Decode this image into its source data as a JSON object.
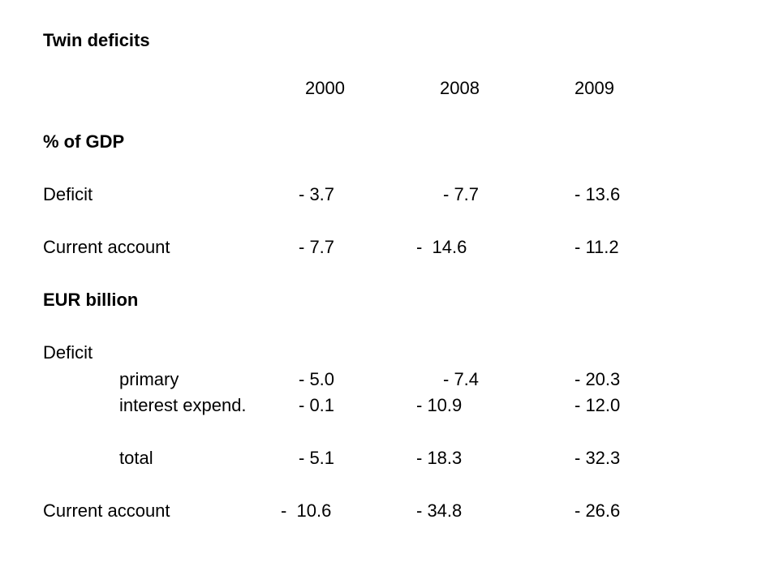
{
  "title": "Twin deficits",
  "years": [
    "2000",
    "2008",
    "2009"
  ],
  "section_pct": {
    "heading": "% of GDP",
    "rows": [
      {
        "label": "Deficit",
        "values": [
          "- 3.7",
          "- 7.7",
          "- 13.6"
        ]
      },
      {
        "label": "Current account",
        "values": [
          "- 7.7",
          "-  14.6",
          "- 11.2"
        ]
      }
    ]
  },
  "section_eur": {
    "heading": "EUR billion",
    "deficit_label": "Deficit",
    "rows": [
      {
        "label": "primary",
        "values": [
          "- 5.0",
          "- 7.4",
          "- 20.3"
        ]
      },
      {
        "label": "interest expend.",
        "values": [
          "- 0.1",
          "- 10.9",
          "- 12.0"
        ]
      },
      {
        "label": "total",
        "values": [
          "- 5.1",
          "- 18.3",
          "- 32.3"
        ]
      }
    ],
    "current_account": {
      "label": "Current account",
      "values": [
        "-  10.6",
        "- 34.8",
        "- 26.6"
      ]
    }
  }
}
